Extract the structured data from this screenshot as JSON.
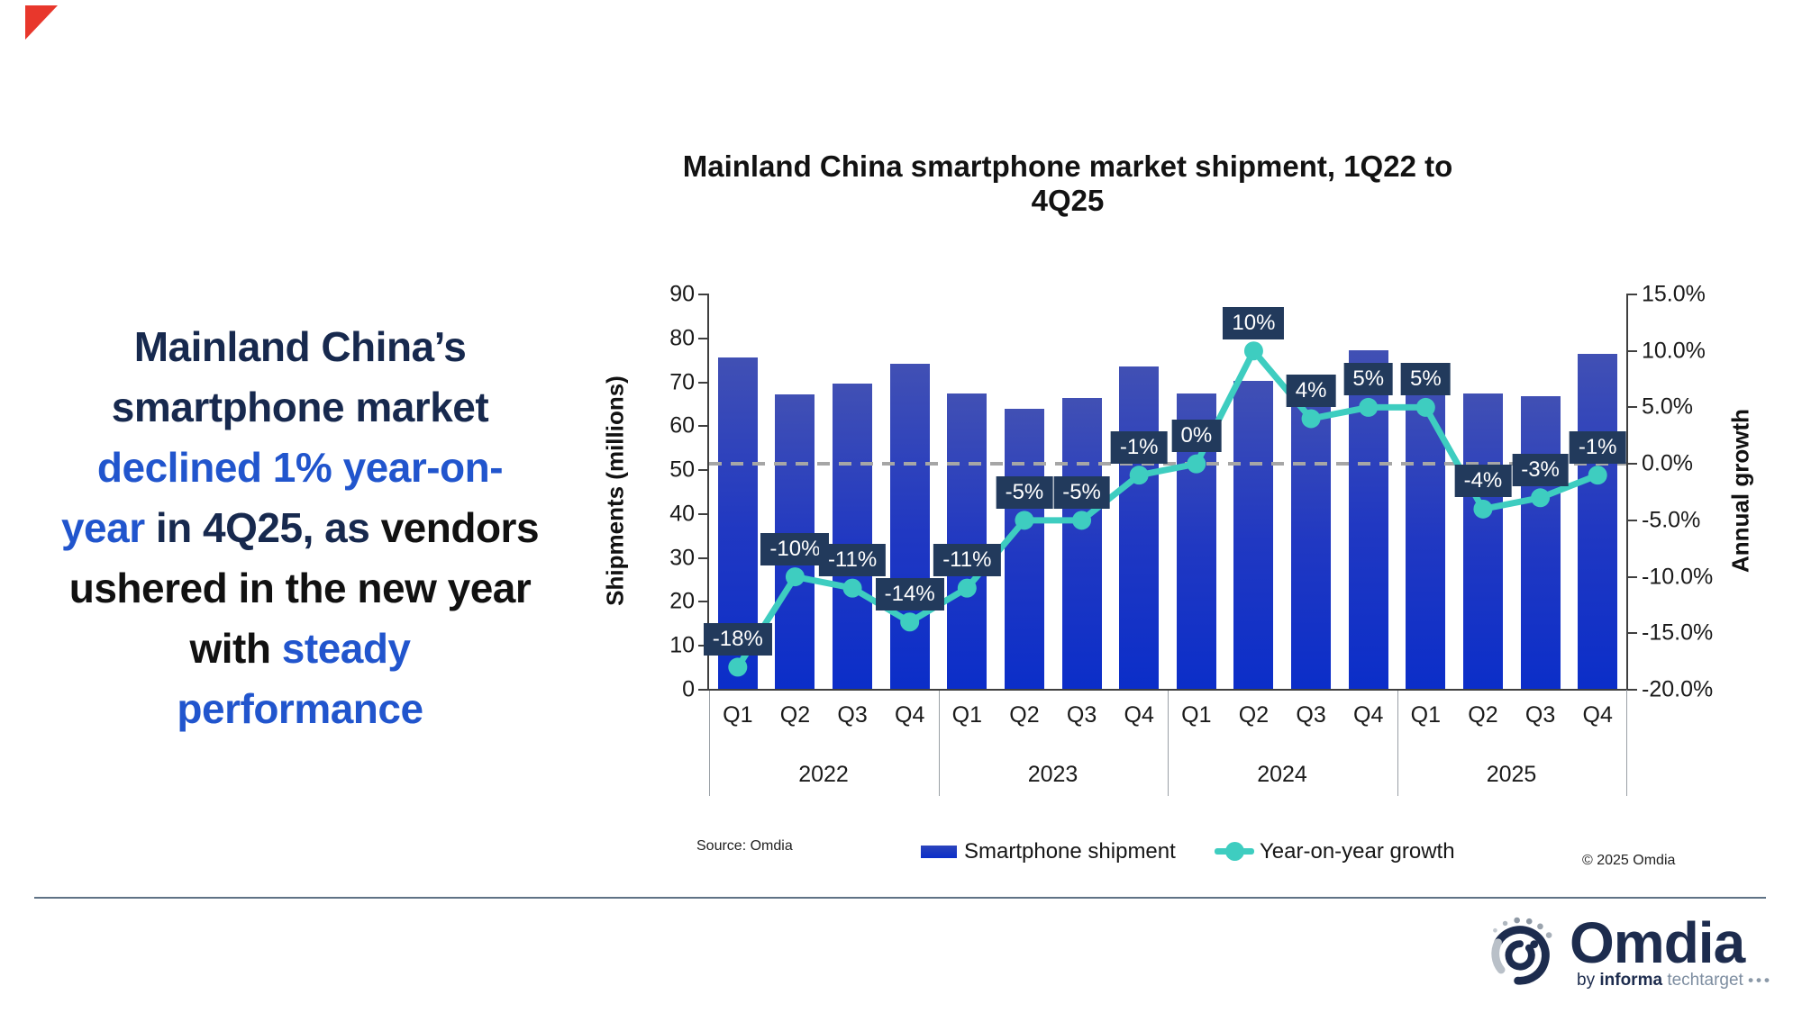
{
  "colors": {
    "headline_navy": "#17294e",
    "headline_blue": "#2155cd",
    "headline_black": "#111111",
    "bar_top": "#4150b4",
    "bar_bottom": "#0b2ec9",
    "legend_bar_swatch": "#1535c4",
    "growth_line_teal": "#3ecdc0",
    "growth_label_bg": "#223a5c",
    "growth_label_text": "#ffffff",
    "dashed_gridline": "#a6a6a6",
    "axis": "#3f3f3f",
    "logo_navy": "#1d2c4e",
    "corner_red": "#e8372c",
    "divider": "#5f7285"
  },
  "headline": {
    "lines": [
      [
        {
          "text": "Mainland China’s",
          "style": "navy"
        }
      ],
      [
        {
          "text": "smartphone market",
          "style": "navy"
        }
      ],
      [
        {
          "text": "declined 1% year-on-",
          "style": "blue"
        }
      ],
      [
        {
          "text": "year",
          "style": "blue"
        },
        {
          "text": " in 4Q25, as ",
          "style": "navy"
        },
        {
          "text": "vendors",
          "style": "black"
        }
      ],
      [
        {
          "text": "ushered in the new year",
          "style": "black"
        }
      ],
      [
        {
          "text": "with ",
          "style": "black"
        },
        {
          "text": "steady",
          "style": "blue"
        }
      ],
      [
        {
          "text": "performance",
          "style": "blue"
        }
      ]
    ]
  },
  "chart_data": {
    "type": "bar",
    "title": "Mainland China smartphone market shipment, 1Q22 to 4Q25",
    "categories": [
      "1Q22",
      "2Q22",
      "3Q22",
      "4Q22",
      "1Q23",
      "2Q23",
      "3Q23",
      "4Q23",
      "1Q24",
      "2Q24",
      "3Q24",
      "4Q24",
      "1Q25",
      "2Q25",
      "3Q25",
      "4Q25"
    ],
    "x_axis": {
      "quarter_labels": [
        "Q1",
        "Q2",
        "Q3",
        "Q4",
        "Q1",
        "Q2",
        "Q3",
        "Q4",
        "Q1",
        "Q2",
        "Q3",
        "Q4",
        "Q1",
        "Q2",
        "Q3",
        "Q4"
      ],
      "year_groups": [
        "2022",
        "2023",
        "2024",
        "2025"
      ]
    },
    "series": [
      {
        "name": "Smartphone shipment",
        "type": "bar",
        "axis": "left",
        "unit": "millions",
        "values": [
          75.7,
          67.3,
          69.8,
          74.3,
          67.4,
          64.0,
          66.4,
          73.6,
          67.5,
          70.3,
          69.0,
          77.3,
          70.9,
          67.5,
          66.9,
          76.5
        ]
      },
      {
        "name": "Year-on-year growth",
        "type": "line",
        "axis": "right",
        "unit": "percent",
        "values": [
          -18,
          -10,
          -11,
          -14,
          -11,
          -5,
          -5,
          -1,
          0,
          10,
          4,
          5,
          5,
          -4,
          -3,
          -1
        ],
        "labels": [
          "-18%",
          "-10%",
          "-11%",
          "-14%",
          "-11%",
          "-5%",
          "-5%",
          "-1%",
          "0%",
          "10%",
          "4%",
          "5%",
          "5%",
          "-4%",
          "-3%",
          "-1%"
        ]
      }
    ],
    "left_axis": {
      "title": "Shipments (millions)",
      "min": 0,
      "max": 90,
      "step": 10,
      "ticks": [
        90,
        80,
        70,
        60,
        50,
        40,
        30,
        20,
        10,
        0
      ]
    },
    "right_axis": {
      "title": "Annual growth",
      "min": -20,
      "max": 15,
      "step": 5,
      "tick_labels": [
        "15.0%",
        "10.0%",
        "5.0%",
        "0.0%",
        "-5.0%",
        "-10.0%",
        "-15.0%",
        "-20.0%"
      ],
      "tick_values": [
        15,
        10,
        5,
        0,
        -5,
        -10,
        -15,
        -20
      ]
    },
    "gridlines": {
      "dashed_zero_growth_line": true
    },
    "legend_position": "bottom"
  },
  "legend": {
    "bar_label": "Smartphone shipment",
    "line_label": "Year-on-year growth"
  },
  "footer": {
    "source": "Source: Omdia",
    "copyright": "© 2025 Omdia",
    "logo": {
      "name": "Omdia",
      "byline_pre": "by ",
      "byline_bold": "informa",
      "byline_rest": " techtarget ",
      "byline_dots": "•••"
    }
  }
}
